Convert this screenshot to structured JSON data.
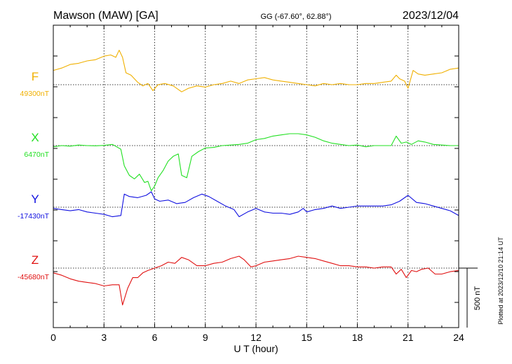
{
  "header": {
    "station": "Mawson (MAW)  [GA]",
    "coords": "GG (-67.60°,  62.88°)",
    "date": "2023/12/04"
  },
  "footer": {
    "xlabel": "U T (hour)",
    "scale_label": "500 nT",
    "plotted_note": "Plotted at 2023/12/10 21:14 UT"
  },
  "chart_data": {
    "type": "line",
    "xlabel": "U T (hour)",
    "xlim": [
      0,
      24
    ],
    "xticks": [
      0,
      3,
      6,
      9,
      12,
      15,
      18,
      21,
      24
    ],
    "xtick_labels": [
      "0",
      "3",
      "6",
      "9",
      "12",
      "15",
      "18",
      "21",
      "24"
    ],
    "grid": "vertical dotted at every 3 hours",
    "scale_bar_nT": 500,
    "series": [
      {
        "name": "F",
        "baseline_label": "49300nT",
        "baseline_nT": 49300,
        "color": "#f0b000",
        "x": [
          0,
          0.5,
          1,
          1.5,
          2,
          2.5,
          3,
          3.4,
          3.7,
          3.9,
          4.1,
          4.3,
          4.6,
          5,
          5.3,
          5.6,
          5.9,
          6.2,
          6.6,
          7.1,
          7.6,
          8,
          8.5,
          9,
          9.5,
          10,
          10.5,
          11,
          11.5,
          12,
          12.5,
          13,
          13.5,
          14,
          14.5,
          15,
          15.5,
          16,
          16.5,
          17,
          17.5,
          18,
          18.5,
          19,
          19.5,
          20,
          20.3,
          20.5,
          20.8,
          21,
          21.3,
          21.6,
          22,
          22.5,
          23,
          23.5,
          24
        ],
        "values": [
          49420,
          49440,
          49470,
          49480,
          49500,
          49510,
          49540,
          49550,
          49530,
          49590,
          49530,
          49400,
          49380,
          49320,
          49290,
          49310,
          49250,
          49300,
          49310,
          49290,
          49240,
          49270,
          49290,
          49280,
          49300,
          49310,
          49330,
          49310,
          49340,
          49350,
          49360,
          49340,
          49330,
          49320,
          49310,
          49300,
          49290,
          49310,
          49300,
          49310,
          49300,
          49300,
          49310,
          49310,
          49320,
          49330,
          49380,
          49350,
          49330,
          49270,
          49420,
          49390,
          49380,
          49390,
          49400,
          49430,
          49440
        ]
      },
      {
        "name": "X",
        "baseline_label": "6470nT",
        "baseline_nT": 6470,
        "color": "#22e022",
        "x": [
          0,
          0.5,
          1,
          1.5,
          2,
          2.5,
          3,
          3.5,
          4,
          4.2,
          4.5,
          4.8,
          5.1,
          5.4,
          5.6,
          5.8,
          6,
          6.2,
          6.5,
          6.8,
          7.1,
          7.4,
          7.6,
          7.9,
          8.2,
          8.6,
          9,
          9.5,
          10,
          10.5,
          11,
          11.5,
          12,
          12.5,
          13,
          13.5,
          14,
          14.5,
          15,
          15.5,
          16,
          16.5,
          17,
          17.5,
          18,
          18.5,
          19,
          19.5,
          20,
          20.3,
          20.6,
          20.9,
          21.2,
          21.6,
          22,
          22.5,
          23,
          23.5,
          24
        ],
        "values": [
          6460,
          6470,
          6465,
          6475,
          6470,
          6468,
          6472,
          6480,
          6440,
          6300,
          6220,
          6190,
          6230,
          6160,
          6170,
          6090,
          6130,
          6200,
          6260,
          6340,
          6380,
          6400,
          6220,
          6200,
          6380,
          6420,
          6450,
          6455,
          6470,
          6475,
          6480,
          6490,
          6520,
          6530,
          6550,
          6560,
          6570,
          6570,
          6560,
          6540,
          6510,
          6490,
          6480,
          6470,
          6475,
          6460,
          6470,
          6470,
          6470,
          6550,
          6490,
          6500,
          6480,
          6510,
          6500,
          6480,
          6475,
          6470,
          6470
        ]
      },
      {
        "name": "Y",
        "baseline_label": "-17430nT",
        "baseline_nT": -17430,
        "color": "#1010e0",
        "x": [
          0,
          0.5,
          1,
          1.5,
          2,
          2.5,
          3,
          3.5,
          4,
          4.2,
          4.5,
          5,
          5.5,
          5.8,
          6,
          6.3,
          6.8,
          7.3,
          7.8,
          8.3,
          8.8,
          9.2,
          9.7,
          10.2,
          10.7,
          11,
          11.5,
          12,
          12.5,
          13,
          13.5,
          14,
          14.5,
          14.8,
          15,
          15.5,
          16,
          16.5,
          17,
          17.5,
          18,
          18.5,
          19,
          19.5,
          20,
          20.5,
          21,
          21.5,
          22,
          22.5,
          23,
          23.5,
          24
        ],
        "values": [
          -17440,
          -17450,
          -17460,
          -17450,
          -17470,
          -17480,
          -17490,
          -17510,
          -17500,
          -17320,
          -17340,
          -17350,
          -17330,
          -17300,
          -17360,
          -17380,
          -17370,
          -17400,
          -17390,
          -17350,
          -17320,
          -17340,
          -17380,
          -17420,
          -17450,
          -17510,
          -17470,
          -17440,
          -17470,
          -17480,
          -17480,
          -17490,
          -17470,
          -17440,
          -17470,
          -17450,
          -17440,
          -17420,
          -17440,
          -17430,
          -17420,
          -17420,
          -17420,
          -17420,
          -17410,
          -17380,
          -17330,
          -17390,
          -17400,
          -17420,
          -17440,
          -17460,
          -17500
        ]
      },
      {
        "name": "Z",
        "baseline_label": "-45680nT",
        "baseline_nT": -45680,
        "color": "#e01010",
        "x": [
          0,
          0.5,
          1,
          1.5,
          2,
          2.5,
          3,
          3.5,
          3.9,
          4.1,
          4.4,
          4.7,
          5,
          5.3,
          5.6,
          6,
          6.4,
          6.8,
          7.2,
          7.6,
          8,
          8.5,
          9,
          9.5,
          10,
          10.5,
          11,
          11.3,
          11.7,
          12,
          12.5,
          13,
          13.5,
          14,
          14.5,
          15,
          15.5,
          16,
          16.5,
          17,
          17.5,
          18,
          18.5,
          19,
          19.5,
          20,
          20.3,
          20.6,
          20.9,
          21.2,
          21.5,
          21.8,
          22.2,
          22.6,
          23,
          23.5,
          24
        ],
        "values": [
          -45720,
          -45740,
          -45770,
          -45790,
          -45800,
          -45810,
          -45830,
          -45820,
          -45820,
          -45990,
          -45850,
          -45760,
          -45760,
          -45720,
          -45700,
          -45680,
          -45660,
          -45630,
          -45640,
          -45590,
          -45610,
          -45660,
          -45660,
          -45640,
          -45630,
          -45600,
          -45580,
          -45610,
          -45670,
          -45660,
          -45630,
          -45620,
          -45610,
          -45600,
          -45580,
          -45590,
          -45600,
          -45620,
          -45640,
          -45660,
          -45660,
          -45670,
          -45670,
          -45680,
          -45670,
          -45670,
          -45730,
          -45690,
          -45760,
          -45700,
          -45710,
          -45690,
          -45680,
          -45730,
          -45730,
          -45710,
          -45700
        ]
      }
    ]
  }
}
